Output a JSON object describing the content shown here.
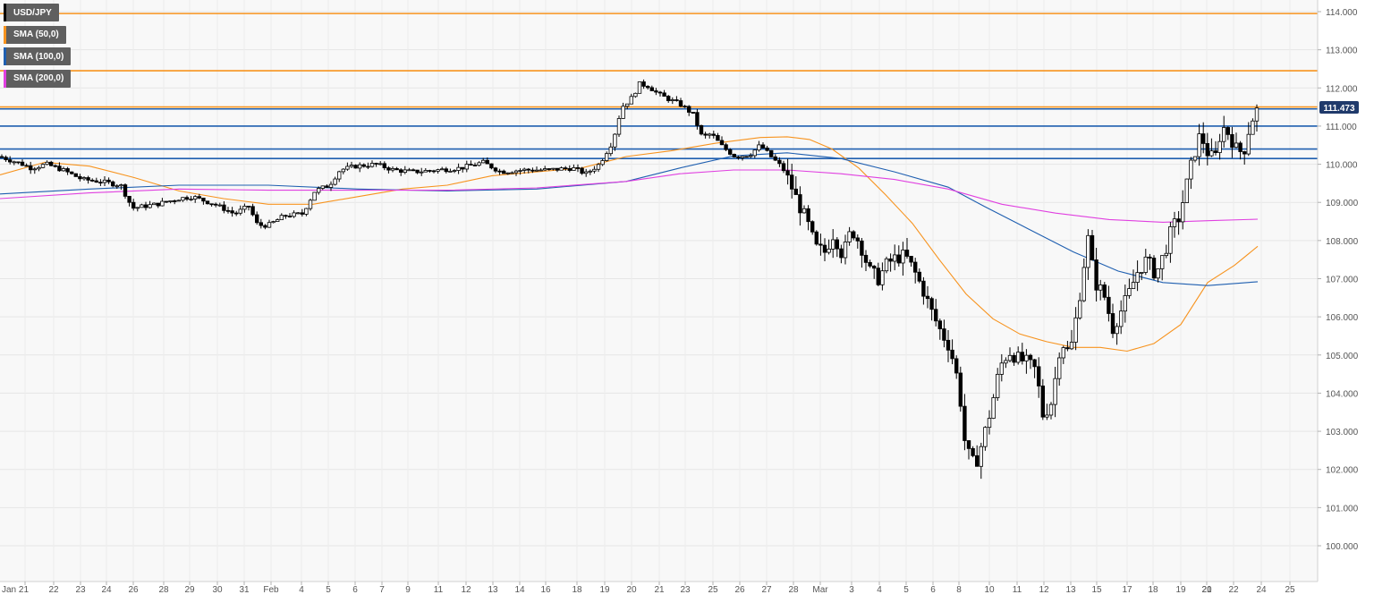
{
  "legend": {
    "items": [
      {
        "label": "USD/JPY",
        "color": "#000000"
      },
      {
        "label": "SMA (50,0)",
        "color": "#f7931e"
      },
      {
        "label": "SMA (100,0)",
        "color": "#1f5fb0"
      },
      {
        "label": "SMA (200,0)",
        "color": "#e040e0"
      }
    ]
  },
  "price_badge": "111.473",
  "chart_data": {
    "type": "candlestick",
    "symbol": "USD/JPY",
    "timeframe": "4h",
    "title": "",
    "xlabel": "",
    "ylabel": "",
    "ylim": [
      99.6,
      114.3
    ],
    "grid": true,
    "legend_position": "top-left",
    "y_ticks": [
      "114.000",
      "113.000",
      "112.000",
      "111.000",
      "110.000",
      "109.000",
      "108.000",
      "107.000",
      "106.000",
      "105.000",
      "104.000",
      "103.000",
      "102.000",
      "101.000",
      "100.000"
    ],
    "x_ticks": [
      "Jan 21",
      "22",
      "23",
      "24",
      "26",
      "28",
      "29",
      "30",
      "31",
      "Feb",
      "4",
      "5",
      "6",
      "7",
      "9",
      "11",
      "12",
      "13",
      "14",
      "16",
      "18",
      "19",
      "20",
      "21",
      "23",
      "25",
      "26",
      "27",
      "28",
      "Mar",
      "3",
      "4",
      "5",
      "6",
      "8",
      "10",
      "11",
      "12",
      "13",
      "15",
      "17",
      "18",
      "19",
      "20",
      "21",
      "22",
      "24",
      "25"
    ],
    "last_price": 111.473,
    "horizontal_levels": [
      {
        "value": 113.95,
        "color": "#f7931e"
      },
      {
        "value": 112.45,
        "color": "#f7931e"
      },
      {
        "value": 111.5,
        "color": "#f7931e"
      },
      {
        "value": 111.45,
        "color": "#1f5fb0"
      },
      {
        "value": 111.0,
        "color": "#1f5fb0"
      },
      {
        "value": 110.4,
        "color": "#1f5fb0"
      },
      {
        "value": 110.15,
        "color": "#1f5fb0"
      }
    ],
    "close_anchors": [
      [
        0,
        110.2
      ],
      [
        25,
        110.0
      ],
      [
        35,
        109.9
      ],
      [
        52,
        110.0
      ],
      [
        70,
        109.85
      ],
      [
        92,
        109.6
      ],
      [
        112,
        109.55
      ],
      [
        135,
        109.45
      ],
      [
        148,
        108.85
      ],
      [
        175,
        108.95
      ],
      [
        200,
        109.1
      ],
      [
        215,
        109.15
      ],
      [
        240,
        108.95
      ],
      [
        262,
        108.7
      ],
      [
        278,
        108.9
      ],
      [
        288,
        108.4
      ],
      [
        300,
        108.4
      ],
      [
        318,
        108.65
      ],
      [
        338,
        108.7
      ],
      [
        352,
        109.3
      ],
      [
        368,
        109.45
      ],
      [
        380,
        109.85
      ],
      [
        398,
        109.95
      ],
      [
        420,
        110.0
      ],
      [
        440,
        109.85
      ],
      [
        462,
        109.8
      ],
      [
        490,
        109.85
      ],
      [
        515,
        109.9
      ],
      [
        540,
        110.05
      ],
      [
        560,
        109.8
      ],
      [
        585,
        109.85
      ],
      [
        612,
        109.85
      ],
      [
        640,
        109.9
      ],
      [
        655,
        109.75
      ],
      [
        670,
        110.0
      ],
      [
        685,
        110.6
      ],
      [
        695,
        111.5
      ],
      [
        705,
        111.7
      ],
      [
        715,
        112.1
      ],
      [
        725,
        112.05
      ],
      [
        735,
        111.85
      ],
      [
        748,
        111.7
      ],
      [
        762,
        111.55
      ],
      [
        775,
        111.3
      ],
      [
        785,
        110.7
      ],
      [
        795,
        110.8
      ],
      [
        808,
        110.45
      ],
      [
        822,
        110.2
      ],
      [
        838,
        110.25
      ],
      [
        850,
        110.5
      ],
      [
        862,
        110.2
      ],
      [
        875,
        109.9
      ],
      [
        885,
        109.4
      ],
      [
        892,
        109.0
      ],
      [
        902,
        108.5
      ],
      [
        912,
        107.8
      ],
      [
        922,
        107.7
      ],
      [
        932,
        108.2
      ],
      [
        942,
        107.6
      ],
      [
        952,
        108.3
      ],
      [
        962,
        107.9
      ],
      [
        972,
        107.2
      ],
      [
        982,
        107.0
      ],
      [
        992,
        107.4
      ],
      [
        1002,
        107.55
      ],
      [
        1012,
        107.6
      ],
      [
        1022,
        107.2
      ],
      [
        1032,
        106.7
      ],
      [
        1042,
        106.1
      ],
      [
        1052,
        105.6
      ],
      [
        1062,
        105.2
      ],
      [
        1072,
        104.2
      ],
      [
        1078,
        102.8
      ],
      [
        1084,
        102.3
      ],
      [
        1090,
        102.1
      ],
      [
        1098,
        102.7
      ],
      [
        1108,
        103.6
      ],
      [
        1118,
        104.7
      ],
      [
        1128,
        105.1
      ],
      [
        1138,
        104.9
      ],
      [
        1148,
        104.8
      ],
      [
        1158,
        104.6
      ],
      [
        1166,
        103.4
      ],
      [
        1176,
        103.8
      ],
      [
        1186,
        105.4
      ],
      [
        1196,
        105.0
      ],
      [
        1206,
        106.4
      ],
      [
        1216,
        108.1
      ],
      [
        1224,
        106.9
      ],
      [
        1234,
        106.6
      ],
      [
        1244,
        105.7
      ],
      [
        1254,
        106.2
      ],
      [
        1262,
        106.6
      ],
      [
        1272,
        107.2
      ],
      [
        1282,
        107.5
      ],
      [
        1292,
        107.1
      ],
      [
        1302,
        107.7
      ],
      [
        1310,
        108.3
      ],
      [
        1318,
        108.6
      ],
      [
        1326,
        109.4
      ],
      [
        1334,
        110.2
      ],
      [
        1342,
        110.8
      ],
      [
        1350,
        110.3
      ],
      [
        1358,
        110.1
      ],
      [
        1366,
        111.0
      ],
      [
        1374,
        110.8
      ],
      [
        1382,
        110.4
      ],
      [
        1390,
        110.3
      ],
      [
        1398,
        111.1
      ],
      [
        1406,
        111.47
      ]
    ],
    "series": [
      {
        "name": "SMA (50,0)",
        "color": "#f7931e",
        "points": [
          [
            0,
            109.72
          ],
          [
            50,
            110.05
          ],
          [
            100,
            109.95
          ],
          [
            150,
            109.65
          ],
          [
            200,
            109.3
          ],
          [
            250,
            109.1
          ],
          [
            300,
            108.95
          ],
          [
            350,
            108.95
          ],
          [
            400,
            109.15
          ],
          [
            450,
            109.35
          ],
          [
            500,
            109.45
          ],
          [
            550,
            109.7
          ],
          [
            600,
            109.8
          ],
          [
            650,
            109.9
          ],
          [
            700,
            110.2
          ],
          [
            750,
            110.35
          ],
          [
            800,
            110.55
          ],
          [
            850,
            110.7
          ],
          [
            880,
            110.72
          ],
          [
            905,
            110.65
          ],
          [
            930,
            110.4
          ],
          [
            960,
            109.9
          ],
          [
            990,
            109.2
          ],
          [
            1020,
            108.45
          ],
          [
            1050,
            107.5
          ],
          [
            1080,
            106.6
          ],
          [
            1110,
            105.95
          ],
          [
            1140,
            105.55
          ],
          [
            1170,
            105.35
          ],
          [
            1200,
            105.2
          ],
          [
            1230,
            105.2
          ],
          [
            1260,
            105.1
          ],
          [
            1290,
            105.3
          ],
          [
            1320,
            105.8
          ],
          [
            1350,
            106.9
          ],
          [
            1380,
            107.35
          ],
          [
            1406,
            107.85
          ]
        ]
      },
      {
        "name": "SMA (100,0)",
        "color": "#1f5fb0",
        "points": [
          [
            0,
            109.22
          ],
          [
            100,
            109.35
          ],
          [
            200,
            109.45
          ],
          [
            300,
            109.45
          ],
          [
            400,
            109.35
          ],
          [
            500,
            109.3
          ],
          [
            600,
            109.35
          ],
          [
            700,
            109.55
          ],
          [
            760,
            109.9
          ],
          [
            820,
            110.22
          ],
          [
            880,
            110.3
          ],
          [
            940,
            110.15
          ],
          [
            1000,
            109.8
          ],
          [
            1060,
            109.4
          ],
          [
            1100,
            108.9
          ],
          [
            1150,
            108.3
          ],
          [
            1200,
            107.7
          ],
          [
            1250,
            107.2
          ],
          [
            1300,
            106.9
          ],
          [
            1350,
            106.82
          ],
          [
            1406,
            106.92
          ]
        ]
      },
      {
        "name": "SMA (200,0)",
        "color": "#e040e0",
        "points": [
          [
            0,
            109.1
          ],
          [
            100,
            109.25
          ],
          [
            200,
            109.35
          ],
          [
            300,
            109.32
          ],
          [
            400,
            109.32
          ],
          [
            500,
            109.32
          ],
          [
            600,
            109.38
          ],
          [
            700,
            109.55
          ],
          [
            760,
            109.75
          ],
          [
            820,
            109.85
          ],
          [
            880,
            109.85
          ],
          [
            940,
            109.75
          ],
          [
            1000,
            109.6
          ],
          [
            1060,
            109.35
          ],
          [
            1120,
            108.95
          ],
          [
            1180,
            108.72
          ],
          [
            1240,
            108.55
          ],
          [
            1300,
            108.48
          ],
          [
            1350,
            108.52
          ],
          [
            1406,
            108.56
          ]
        ]
      }
    ]
  }
}
